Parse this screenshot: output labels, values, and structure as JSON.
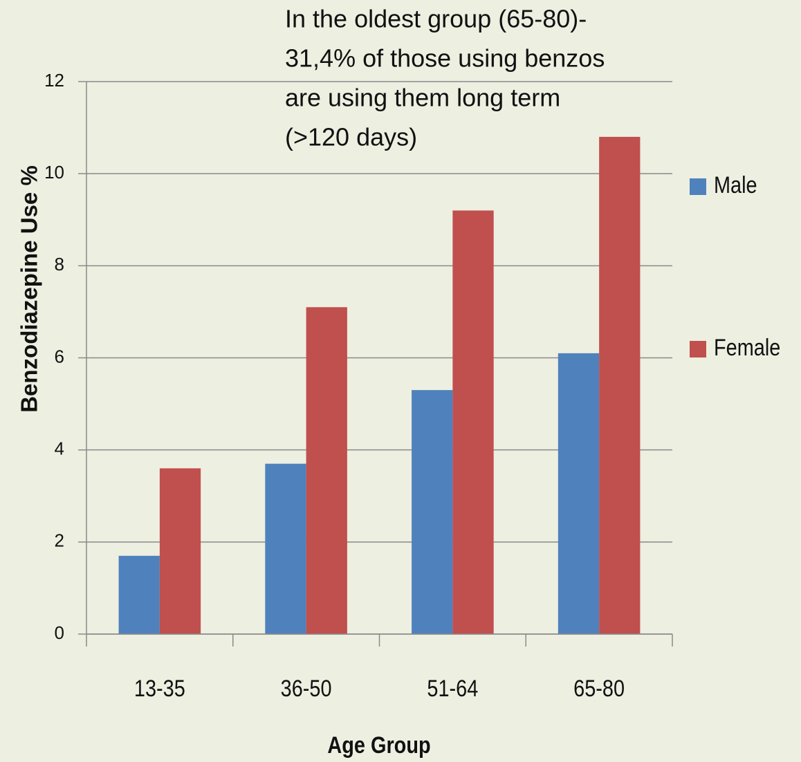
{
  "chart_data": {
    "type": "bar",
    "annotation": [
      "In the oldest group (65-80)-",
      "31,4% of those using benzos",
      "are using them long term",
      "(>120 days)"
    ],
    "xlabel": "Age Group",
    "ylabel": "Benzodiazepine Use %",
    "categories": [
      "13-35",
      "36-50",
      "51-64",
      "65-80"
    ],
    "series": [
      {
        "name": "Male",
        "color": "#4f81bd",
        "values": [
          1.7,
          3.7,
          5.3,
          6.1
        ]
      },
      {
        "name": "Female",
        "color": "#c0504d",
        "values": [
          3.6,
          7.1,
          9.2,
          10.8
        ]
      }
    ],
    "ylim": [
      0,
      12
    ],
    "yticks": [
      0,
      2,
      4,
      6,
      8,
      10,
      12
    ],
    "grid": true,
    "legend": "right"
  }
}
